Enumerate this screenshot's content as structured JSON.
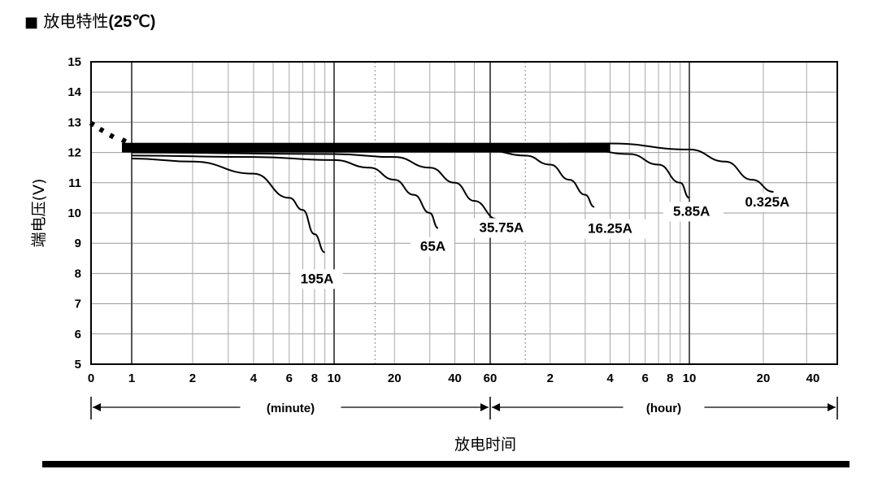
{
  "title": {
    "prefix_symbol": "■",
    "text": "放电特性",
    "condition": "(25℃)"
  },
  "chart_data": {
    "type": "line",
    "title": "放电特性(25℃)",
    "xlabel": "放电时间",
    "ylabel": "端电压(V)",
    "x_scale": "log",
    "ylim": [
      5,
      15
    ],
    "y_ticks": [
      5,
      6,
      7,
      8,
      9,
      10,
      11,
      12,
      13,
      14,
      15
    ],
    "x_tick_labels": [
      "0",
      "1",
      "2",
      "4",
      "6",
      "8",
      "10",
      "20",
      "40",
      "60",
      "2",
      "4",
      "6",
      "8",
      "10",
      "20",
      "40"
    ],
    "x_ranges": [
      "(minute)",
      "(hour)"
    ],
    "grid": true,
    "series": [
      {
        "name": "195A",
        "points": [
          [
            1,
            11.8
          ],
          [
            2,
            11.7
          ],
          [
            4,
            11.3
          ],
          [
            6,
            10.5
          ],
          [
            7,
            10.1
          ],
          [
            8,
            9.3
          ],
          [
            9,
            8.7
          ]
        ]
      },
      {
        "name": "65A",
        "points": [
          [
            1,
            11.9
          ],
          [
            4,
            11.85
          ],
          [
            10,
            11.75
          ],
          [
            15,
            11.5
          ],
          [
            20,
            11.1
          ],
          [
            25,
            10.6
          ],
          [
            30,
            10.0
          ],
          [
            33,
            9.5
          ]
        ]
      },
      {
        "name": "35.75A",
        "points": [
          [
            1,
            12.0
          ],
          [
            10,
            11.95
          ],
          [
            20,
            11.85
          ],
          [
            30,
            11.5
          ],
          [
            40,
            11.0
          ],
          [
            50,
            10.4
          ],
          [
            65,
            9.8
          ]
        ]
      },
      {
        "name": "16.25A",
        "points": [
          [
            1,
            12.1
          ],
          [
            60,
            12.05
          ],
          [
            90,
            11.9
          ],
          [
            120,
            11.6
          ],
          [
            150,
            11.1
          ],
          [
            180,
            10.6
          ],
          [
            200,
            10.2
          ]
        ]
      },
      {
        "name": "5.85A",
        "points": [
          [
            1,
            12.15
          ],
          [
            180,
            12.1
          ],
          [
            300,
            11.95
          ],
          [
            420,
            11.6
          ],
          [
            540,
            11.0
          ],
          [
            600,
            10.5
          ]
        ]
      },
      {
        "name": "0.325A",
        "points": [
          [
            1,
            12.2
          ],
          [
            240,
            12.3
          ],
          [
            600,
            12.1
          ],
          [
            840,
            11.7
          ],
          [
            1080,
            11.1
          ],
          [
            1320,
            10.7
          ]
        ]
      }
    ]
  }
}
